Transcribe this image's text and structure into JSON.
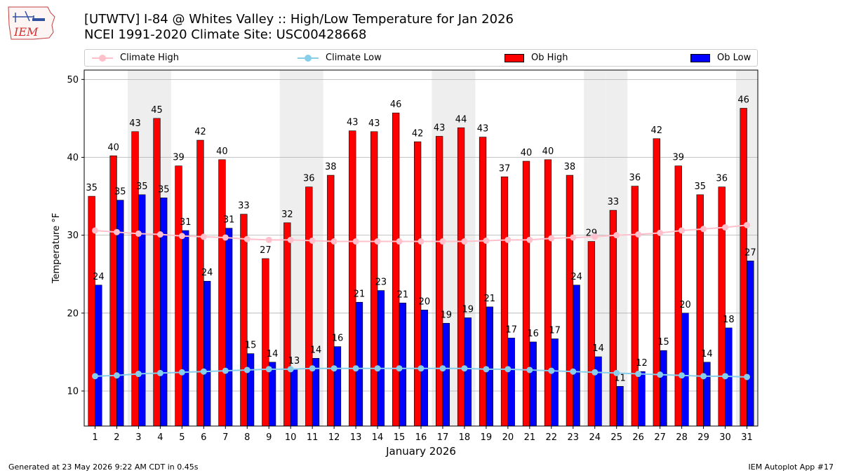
{
  "title_line1": "[UTWTV] I-84 @ Whites Valley  :: High/Low Temperature for Jan 2026",
  "title_line2": "NCEI 1991-2020 Climate Site: USC00428668",
  "logo_text": "IEM",
  "footer_left": "Generated at 23 May 2026 9:22 AM CDT in 0.45s",
  "footer_right": "IEM Autoplot App #17",
  "colors": {
    "ob_high": "#ff0000",
    "ob_low": "#0000ff",
    "climate_high": "#ffc0cb",
    "climate_low": "#87ceeb",
    "weekend_shade": "#eeeeee"
  },
  "legend": [
    {
      "label": "Climate High",
      "kind": "line",
      "color": "#ffc0cb"
    },
    {
      "label": "Climate Low",
      "kind": "line",
      "color": "#87ceeb"
    },
    {
      "label": "Ob High",
      "kind": "bar",
      "color": "#ff0000"
    },
    {
      "label": "Ob Low",
      "kind": "bar",
      "color": "#0000ff"
    }
  ],
  "chart_data": {
    "type": "bar",
    "xlabel": "January 2026",
    "ylabel": "Temperature °F",
    "ylim": [
      5.5,
      51.2
    ],
    "yticks": [
      10,
      20,
      30,
      40,
      50
    ],
    "grid": "horizontal",
    "legend_position": "top",
    "categories": [
      1,
      2,
      3,
      4,
      5,
      6,
      7,
      8,
      9,
      10,
      11,
      12,
      13,
      14,
      15,
      16,
      17,
      18,
      19,
      20,
      21,
      22,
      23,
      24,
      25,
      26,
      27,
      28,
      29,
      30,
      31
    ],
    "shaded_days": [
      3,
      4,
      10,
      11,
      17,
      18,
      24,
      25,
      31
    ],
    "series": [
      {
        "name": "Ob High",
        "kind": "bar",
        "values": [
          35,
          40,
          43,
          45,
          39,
          42,
          40,
          33,
          27,
          32,
          36,
          38,
          43,
          43,
          46,
          42,
          43,
          44,
          43,
          37,
          40,
          40,
          38,
          29,
          33,
          36,
          42,
          39,
          35,
          36,
          46
        ],
        "heights": [
          35.0,
          40.2,
          43.3,
          45.0,
          38.9,
          42.2,
          39.7,
          32.7,
          27.0,
          31.6,
          36.2,
          37.7,
          43.4,
          43.3,
          45.7,
          42.0,
          42.7,
          43.8,
          42.6,
          37.5,
          39.5,
          39.7,
          37.7,
          29.2,
          33.2,
          36.3,
          42.4,
          38.9,
          35.2,
          36.2,
          46.3
        ]
      },
      {
        "name": "Ob Low",
        "kind": "bar",
        "values": [
          24,
          35,
          35,
          35,
          31,
          24,
          31,
          15,
          14,
          13,
          14,
          16,
          21,
          23,
          21,
          20,
          19,
          19,
          21,
          17,
          16,
          17,
          24,
          14,
          11,
          12,
          15,
          20,
          14,
          18,
          27
        ],
        "heights": [
          23.6,
          34.5,
          35.2,
          34.8,
          30.6,
          24.1,
          30.9,
          14.8,
          13.7,
          12.8,
          14.2,
          15.7,
          21.4,
          22.9,
          21.3,
          20.4,
          18.7,
          19.4,
          20.8,
          16.8,
          16.3,
          16.7,
          23.6,
          14.4,
          10.6,
          12.5,
          15.2,
          20.0,
          13.7,
          18.1,
          26.7
        ]
      },
      {
        "name": "Climate High",
        "kind": "line",
        "values": [
          30.6,
          30.4,
          30.2,
          30.1,
          29.9,
          29.8,
          29.7,
          29.5,
          29.4,
          29.4,
          29.3,
          29.2,
          29.2,
          29.2,
          29.2,
          29.2,
          29.2,
          29.2,
          29.3,
          29.4,
          29.4,
          29.6,
          29.7,
          29.8,
          30.0,
          30.1,
          30.3,
          30.6,
          30.8,
          31.0,
          31.3
        ]
      },
      {
        "name": "Climate Low",
        "kind": "line",
        "values": [
          11.9,
          12.0,
          12.2,
          12.3,
          12.4,
          12.5,
          12.6,
          12.7,
          12.8,
          12.8,
          12.9,
          12.9,
          12.9,
          12.9,
          12.9,
          12.9,
          12.9,
          12.9,
          12.8,
          12.8,
          12.7,
          12.6,
          12.5,
          12.4,
          12.3,
          12.2,
          12.1,
          12.0,
          11.9,
          11.9,
          11.8
        ]
      }
    ]
  }
}
